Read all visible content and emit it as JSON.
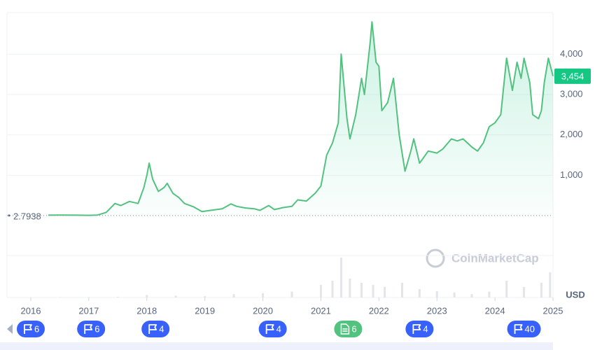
{
  "chart_data": {
    "type": "line",
    "x": [
      2016.3,
      2016.5,
      2016.8,
      2017.0,
      2017.15,
      2017.3,
      2017.45,
      2017.55,
      2017.7,
      2017.85,
      2017.95,
      2018.0,
      2018.04,
      2018.1,
      2018.2,
      2018.3,
      2018.35,
      2018.45,
      2018.55,
      2018.65,
      2018.8,
      2018.95,
      2019.1,
      2019.3,
      2019.45,
      2019.55,
      2019.7,
      2019.85,
      2019.95,
      2020.1,
      2020.2,
      2020.35,
      2020.5,
      2020.6,
      2020.75,
      2020.9,
      2021.0,
      2021.1,
      2021.2,
      2021.3,
      2021.35,
      2021.45,
      2021.5,
      2021.6,
      2021.7,
      2021.75,
      2021.85,
      2021.88,
      2021.95,
      2022.0,
      2022.05,
      2022.15,
      2022.25,
      2022.35,
      2022.45,
      2022.55,
      2022.6,
      2022.7,
      2022.85,
      2023.0,
      2023.1,
      2023.25,
      2023.35,
      2023.45,
      2023.6,
      2023.7,
      2023.8,
      2023.9,
      2024.0,
      2024.1,
      2024.2,
      2024.3,
      2024.38,
      2024.45,
      2024.5,
      2024.6,
      2024.65,
      2024.75,
      2024.8,
      2024.85,
      2024.92,
      2025.0
    ],
    "series": [
      {
        "color": "#53c17f",
        "values": [
          10,
          12,
          11,
          8,
          15,
          80,
          300,
          250,
          350,
          300,
          700,
          1000,
          1300,
          900,
          600,
          700,
          800,
          550,
          450,
          300,
          220,
          100,
          130,
          170,
          290,
          230,
          190,
          170,
          130,
          250,
          150,
          200,
          230,
          390,
          360,
          550,
          730,
          1500,
          1800,
          2300,
          4000,
          2400,
          1900,
          2500,
          3400,
          3000,
          4300,
          4800,
          3800,
          3700,
          2600,
          2800,
          3400,
          2000,
          1100,
          1600,
          1900,
          1300,
          1600,
          1550,
          1650,
          1900,
          1850,
          1900,
          1700,
          1600,
          1800,
          2200,
          2300,
          2500,
          3900,
          3100,
          3800,
          3400,
          3900,
          3300,
          2500,
          2400,
          2600,
          3300,
          3900,
          3454
        ]
      }
    ],
    "xlim": [
      2015.59,
      2025.0
    ],
    "xticks": [
      2016,
      2017,
      2018,
      2019,
      2020,
      2021,
      2022,
      2023,
      2024,
      2025
    ],
    "ylim": [
      -988,
      5029
    ],
    "yticks": [
      {
        "value": 1000,
        "label": "1,000"
      },
      {
        "value": 2000,
        "label": "2,000"
      },
      {
        "value": 3000,
        "label": "3,000"
      },
      {
        "value": 4000,
        "label": "4,000"
      }
    ],
    "grid": true,
    "baseline": 2.7938,
    "current_price": {
      "value": 3454,
      "label": "3,454"
    },
    "unit": "USD",
    "watermark": "CoinMarketCap",
    "volume": {
      "color": "#e3e5ea",
      "ylim": [
        0,
        100
      ],
      "x": [
        2016.5,
        2017.0,
        2017.5,
        2018.0,
        2018.5,
        2019.0,
        2019.5,
        2020.0,
        2020.5,
        2021.0,
        2021.2,
        2021.35,
        2021.5,
        2021.7,
        2021.9,
        2022.1,
        2022.4,
        2022.7,
        2023.0,
        2023.3,
        2023.6,
        2023.9,
        2024.2,
        2024.5,
        2024.8,
        2024.95
      ],
      "values": [
        1,
        1,
        2,
        6,
        4,
        3,
        8,
        10,
        14,
        30,
        40,
        95,
        45,
        35,
        30,
        25,
        35,
        20,
        15,
        12,
        8,
        14,
        40,
        25,
        35,
        60
      ]
    },
    "events": [
      {
        "x": 2016.0,
        "kind": "flag",
        "count": 6
      },
      {
        "x": 2017.04,
        "kind": "flag",
        "count": 6
      },
      {
        "x": 2018.15,
        "kind": "flag",
        "count": 4
      },
      {
        "x": 2020.17,
        "kind": "flag",
        "count": 4
      },
      {
        "x": 2021.47,
        "kind": "doc",
        "count": 6
      },
      {
        "x": 2022.7,
        "kind": "flag",
        "count": 4
      },
      {
        "x": 2024.5,
        "kind": "flag",
        "count": 40
      }
    ]
  }
}
